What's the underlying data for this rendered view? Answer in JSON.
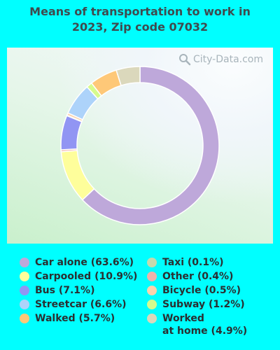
{
  "chart_data": {
    "type": "pie",
    "title_line1": "Means of transportation to work in",
    "title_line2": "2023, Zip code 07032",
    "donut": true,
    "unit": "%",
    "series": [
      {
        "name": "Car alone",
        "value": 63.6,
        "label": "Car alone (63.6%)",
        "color": "#bea8da"
      },
      {
        "name": "Carpooled",
        "value": 10.9,
        "label": "Carpooled (10.9%)",
        "color": "#fefe9b"
      },
      {
        "name": "Bus",
        "value": 7.1,
        "label": "Bus (7.1%)",
        "color": "#9195f3"
      },
      {
        "name": "Streetcar",
        "value": 6.6,
        "label": "Streetcar (6.6%)",
        "color": "#add3fa"
      },
      {
        "name": "Walked",
        "value": 5.7,
        "label": "Walked (5.7%)",
        "color": "#fec878"
      },
      {
        "name": "Taxi",
        "value": 0.1,
        "label": "Taxi (0.1%)",
        "color": "#c4d9ad"
      },
      {
        "name": "Other",
        "value": 0.4,
        "label": "Other (0.4%)",
        "color": "#f0b2aa"
      },
      {
        "name": "Bicycle",
        "value": 0.5,
        "label": "Bicycle (0.5%)",
        "color": "#fcd3ad"
      },
      {
        "name": "Subway",
        "value": 1.2,
        "label": "Subway (1.2%)",
        "color": "#d6fb8d"
      },
      {
        "name": "Worked at home",
        "value": 4.9,
        "label_line1": "Worked",
        "label_line2": "at home (4.9%)",
        "color": "#dbd8bc"
      }
    ],
    "draw_order": [
      "Car alone",
      "Carpooled",
      "Other",
      "Bus",
      "Taxi",
      "Bicycle",
      "Streetcar",
      "Subway",
      "Walked",
      "Worked at home"
    ],
    "legend_placement": "bottom"
  },
  "watermark": {
    "text": "City-Data.com",
    "icon": "magnifier-icon"
  }
}
